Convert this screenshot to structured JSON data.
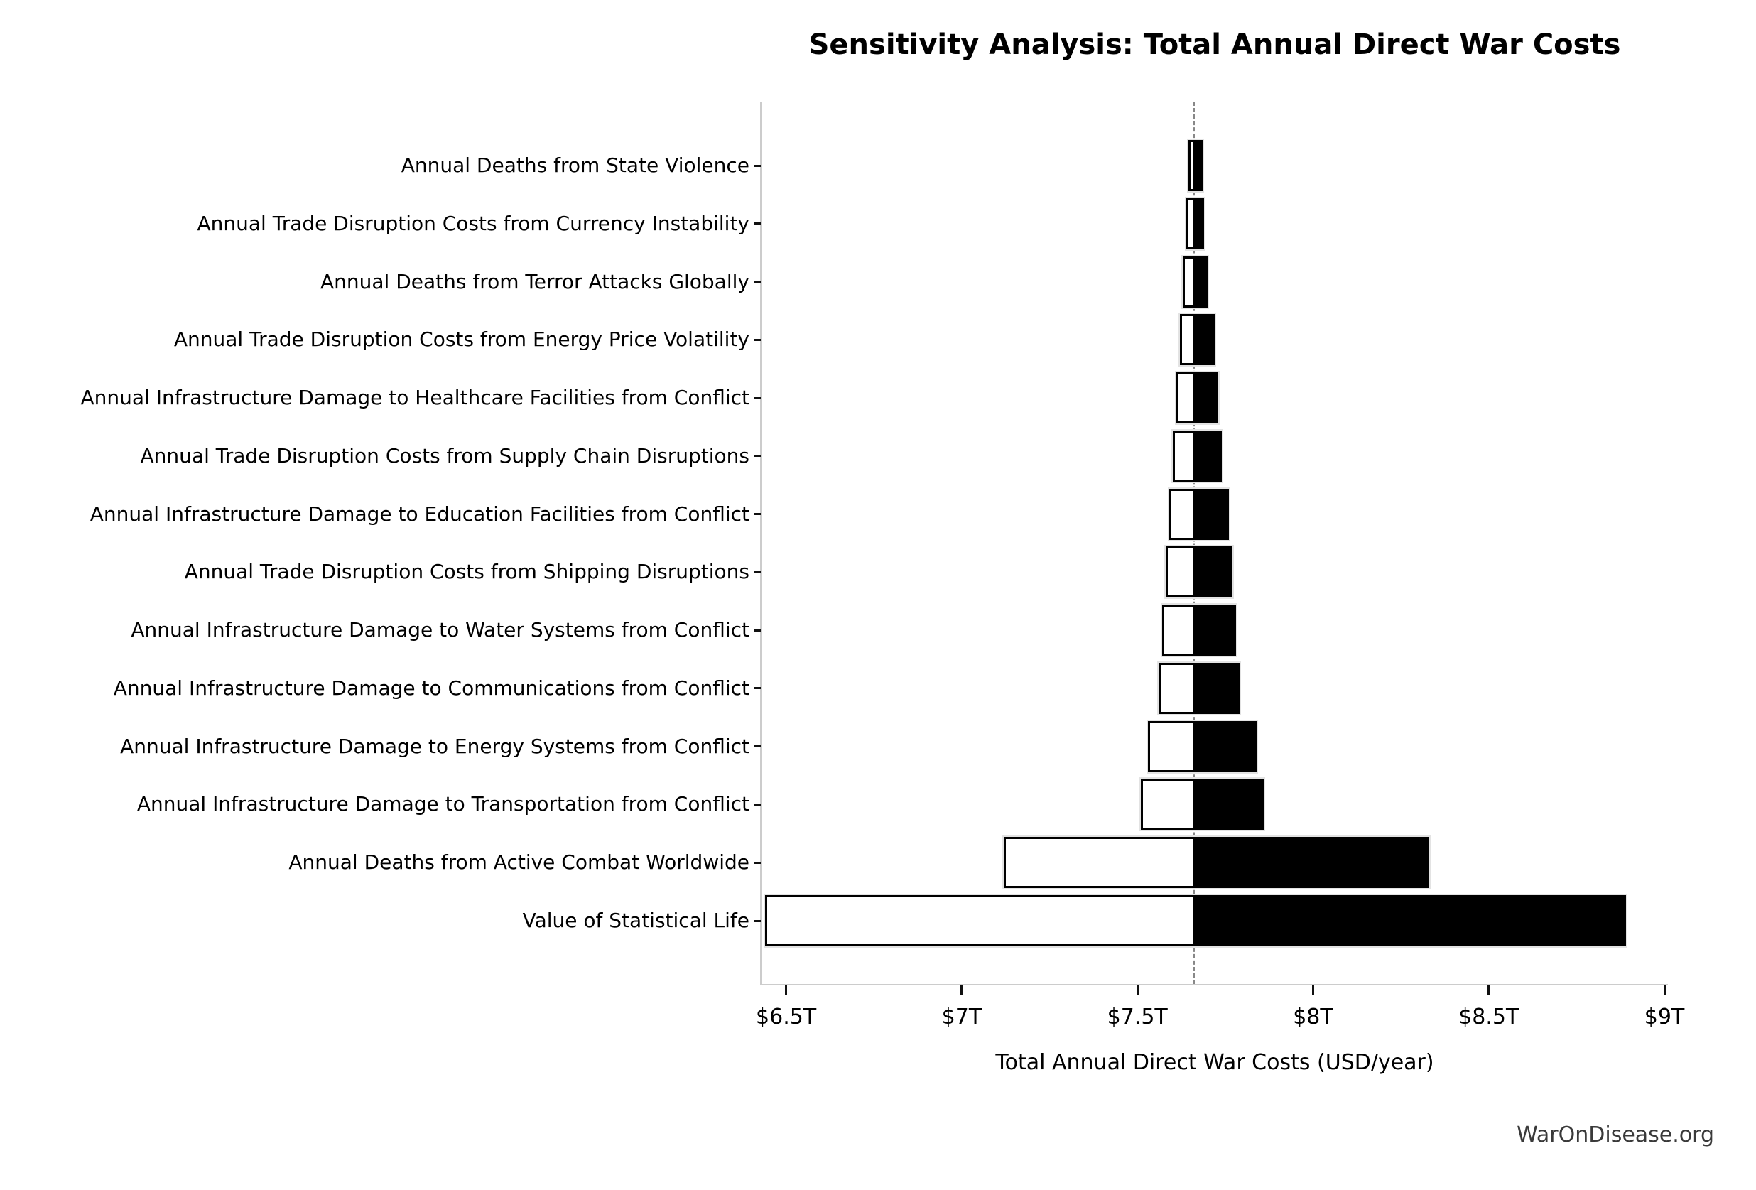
{
  "title": "Sensitivity Analysis: Total Annual Direct War Costs",
  "watermark": "WarOnDisease.org",
  "chart_data": {
    "type": "bar",
    "subtype": "tornado",
    "title": "Sensitivity Analysis: Total Annual Direct War Costs",
    "xlabel": "Total Annual Direct War Costs (USD/year)",
    "ylabel": "",
    "unit": "trillion USD per year",
    "baseline": 7.66,
    "xlim": [
      6.43,
      9.01
    ],
    "xticks": [
      6.5,
      7.0,
      7.5,
      8.0,
      8.5,
      9.0
    ],
    "xtick_labels": [
      "$6.5T",
      "$7T",
      "$7.5T",
      "$8T",
      "$8.5T",
      "$9T"
    ],
    "legend": "none",
    "grid": false,
    "bar_colors": {
      "low_side_fill": "#ffffff",
      "high_side_fill": "#000000",
      "bar_border": "#000000",
      "baseline_line_color": "#888888",
      "spine_color": "#cccccc",
      "tick_color": "#111111"
    },
    "rows": [
      {
        "label": "Annual Deaths from State Violence",
        "low": 7.645,
        "high": 7.685
      },
      {
        "label": "Annual Trade Disruption Costs from Currency Instability",
        "low": 7.64,
        "high": 7.69
      },
      {
        "label": "Annual Deaths from Terror Attacks Globally",
        "low": 7.63,
        "high": 7.7
      },
      {
        "label": "Annual Trade Disruption Costs from Energy Price Volatility",
        "low": 7.62,
        "high": 7.72
      },
      {
        "label": "Annual Infrastructure Damage to Healthcare Facilities from Conflict",
        "low": 7.61,
        "high": 7.73
      },
      {
        "label": "Annual Trade Disruption Costs from Supply Chain Disruptions",
        "low": 7.6,
        "high": 7.74
      },
      {
        "label": "Annual Infrastructure Damage to Education Facilities from Conflict",
        "low": 7.59,
        "high": 7.76
      },
      {
        "label": "Annual Trade Disruption Costs from Shipping Disruptions",
        "low": 7.58,
        "high": 7.77
      },
      {
        "label": "Annual Infrastructure Damage to Water Systems from Conflict",
        "low": 7.57,
        "high": 7.78
      },
      {
        "label": "Annual Infrastructure Damage to Communications from Conflict",
        "low": 7.56,
        "high": 7.79
      },
      {
        "label": "Annual Infrastructure Damage to Energy Systems from Conflict",
        "low": 7.53,
        "high": 7.84
      },
      {
        "label": "Annual Infrastructure Damage to Transportation from Conflict",
        "low": 7.51,
        "high": 7.86
      },
      {
        "label": "Annual Deaths from Active Combat Worldwide",
        "low": 7.12,
        "high": 8.33
      },
      {
        "label": "Value of Statistical Life",
        "low": 6.44,
        "high": 8.89
      }
    ]
  }
}
